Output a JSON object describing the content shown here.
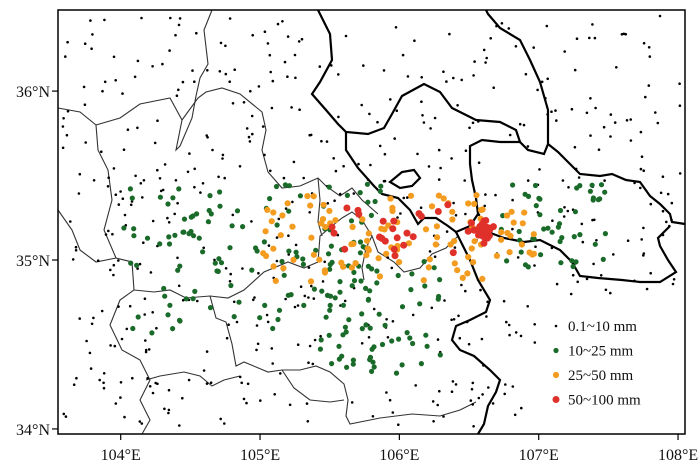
{
  "map": {
    "lon_range": [
      103.55,
      108.05
    ],
    "lat_range": [
      33.97,
      36.48
    ],
    "x_ticks": [
      {
        "value": 104,
        "label": "104°E"
      },
      {
        "value": 105,
        "label": "105°E"
      },
      {
        "value": 106,
        "label": "106°E"
      },
      {
        "value": 107,
        "label": "107°E"
      },
      {
        "value": 108,
        "label": "108°E"
      }
    ],
    "y_ticks": [
      {
        "value": 34,
        "label": "34°N"
      },
      {
        "value": 35,
        "label": "35°N"
      },
      {
        "value": 36,
        "label": "36°N"
      }
    ]
  },
  "legend": {
    "placement": "bottom-right",
    "items": [
      {
        "label": "0.1~10 mm",
        "color": "#000000",
        "radius": 1.3
      },
      {
        "label": "10~25 mm",
        "color": "#1a6b2a",
        "radius": 2.6
      },
      {
        "label": "25~50 mm",
        "color": "#f39c1f",
        "radius": 3.1
      },
      {
        "label": "50~100 mm",
        "color": "#e0302a",
        "radius": 3.5
      }
    ]
  },
  "stations": {
    "category_names": [
      "0.1~10 mm",
      "10~25 mm",
      "25~50 mm",
      "50~100 mm"
    ],
    "random_seed": 20210813,
    "counts": {
      "light": 620,
      "moderate": 240,
      "heavy": 110,
      "severe": 52
    }
  }
}
